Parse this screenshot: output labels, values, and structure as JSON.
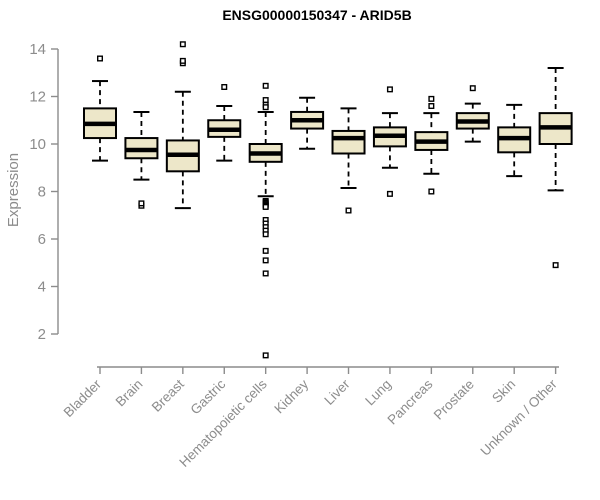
{
  "chart_data": {
    "type": "boxplot",
    "title": "ENSG00000150347 - ARID5B",
    "ylabel": "Expression",
    "xlabel": "",
    "yticks": [
      2,
      4,
      6,
      8,
      10,
      12,
      14
    ],
    "ylim": [
      0.5,
      14.6
    ],
    "grid": false,
    "legend": false,
    "categories": [
      "Bladder",
      "Brain",
      "Breast",
      "Gastric",
      "Hematopoietic cells",
      "Kidney",
      "Liver",
      "Lung",
      "Pancreas",
      "Prostate",
      "Skin",
      "Unknown / Other"
    ],
    "series": [
      {
        "name": "Bladder",
        "low": 9.3,
        "q1": 10.25,
        "median": 10.85,
        "q3": 11.5,
        "high": 12.65,
        "outliers": [
          13.6
        ]
      },
      {
        "name": "Brain",
        "low": 8.5,
        "q1": 9.4,
        "median": 9.75,
        "q3": 10.25,
        "high": 11.35,
        "outliers": [
          7.4,
          7.5
        ]
      },
      {
        "name": "Breast",
        "low": 7.3,
        "q1": 8.85,
        "median": 9.55,
        "q3": 10.15,
        "high": 12.2,
        "outliers": [
          13.4,
          13.5,
          14.2
        ]
      },
      {
        "name": "Gastric",
        "low": 9.3,
        "q1": 10.3,
        "median": 10.6,
        "q3": 11.0,
        "high": 11.6,
        "outliers": [
          12.4
        ]
      },
      {
        "name": "Hematopoietic cells",
        "low": 7.8,
        "q1": 9.25,
        "median": 9.6,
        "q3": 10.0,
        "high": 11.35,
        "outliers": [
          12.45,
          11.85,
          11.65,
          11.55,
          7.6,
          7.55,
          7.5,
          7.45,
          7.4,
          7.35,
          6.8,
          6.65,
          6.5,
          6.35,
          6.2,
          5.5,
          5.1,
          4.55,
          1.1
        ]
      },
      {
        "name": "Kidney",
        "low": 9.8,
        "q1": 10.65,
        "median": 11.0,
        "q3": 11.35,
        "high": 11.95,
        "outliers": []
      },
      {
        "name": "Liver",
        "low": 8.15,
        "q1": 9.6,
        "median": 10.25,
        "q3": 10.55,
        "high": 11.5,
        "outliers": [
          7.2
        ]
      },
      {
        "name": "Lung",
        "low": 9.0,
        "q1": 9.9,
        "median": 10.35,
        "q3": 10.7,
        "high": 11.3,
        "outliers": [
          12.3,
          7.9
        ]
      },
      {
        "name": "Pancreas",
        "low": 8.75,
        "q1": 9.75,
        "median": 10.1,
        "q3": 10.5,
        "high": 11.3,
        "outliers": [
          11.9,
          11.6,
          8.0
        ]
      },
      {
        "name": "Prostate",
        "low": 10.1,
        "q1": 10.65,
        "median": 10.95,
        "q3": 11.3,
        "high": 11.7,
        "outliers": [
          12.35
        ]
      },
      {
        "name": "Skin",
        "low": 8.65,
        "q1": 9.65,
        "median": 10.25,
        "q3": 10.7,
        "high": 11.65,
        "outliers": []
      },
      {
        "name": "Unknown / Other",
        "low": 8.05,
        "q1": 10.0,
        "median": 10.7,
        "q3": 11.3,
        "high": 13.2,
        "outliers": [
          4.9
        ]
      }
    ],
    "colors": {
      "box_fill": "#EDE7C9",
      "box_stroke": "#000000",
      "median": "#000000",
      "axis": "#8C8C8C",
      "tick_label": "#8C8C8C",
      "title": "#000000",
      "background": "#FFFFFF"
    }
  }
}
